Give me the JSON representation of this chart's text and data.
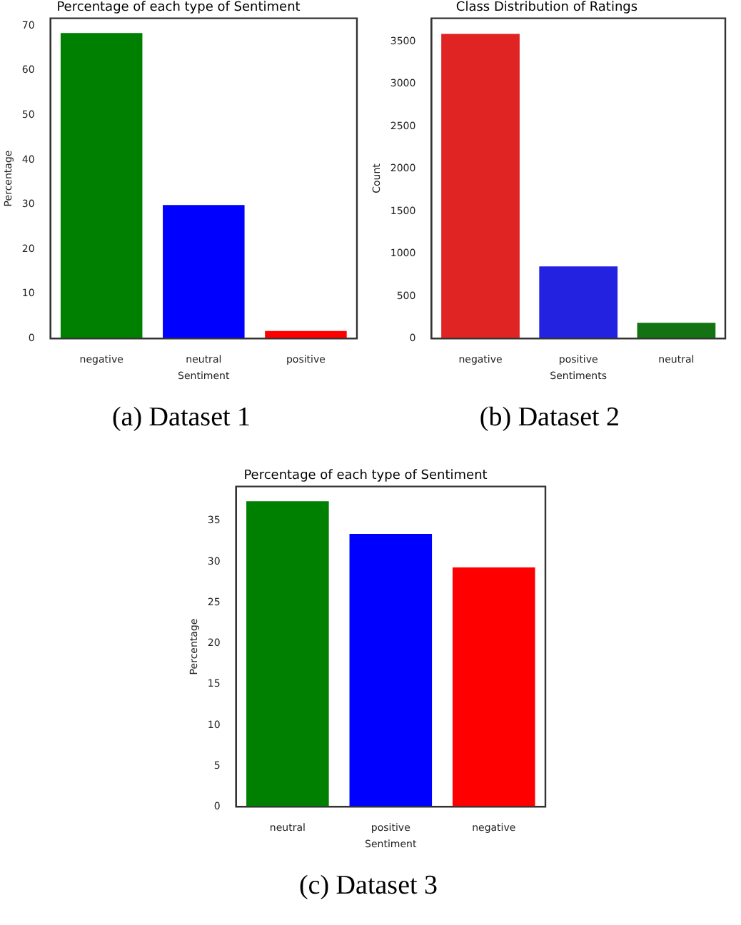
{
  "chart_data": [
    {
      "type": "bar",
      "title": "Percentage of each type of Sentiment",
      "xlabel": "Sentiment",
      "ylabel": "Percentage",
      "categories": [
        "negative",
        "neutral",
        "positive"
      ],
      "values": [
        68.4,
        29.9,
        1.7
      ],
      "colors": [
        "#008000",
        "#0000ff",
        "#ff0000"
      ],
      "ylim": [
        0,
        71.7
      ],
      "yticks": [
        0,
        10,
        20,
        30,
        40,
        50,
        60,
        70
      ],
      "grid": false,
      "legend": false,
      "annotations": [
        "(a) Dataset 1"
      ]
    },
    {
      "type": "bar",
      "title": "Class Distribution of Ratings",
      "xlabel": "Sentiments",
      "ylabel": "Count",
      "categories": [
        "negative",
        "positive",
        "neutral"
      ],
      "values": [
        3590,
        850,
        187
      ],
      "colors": [
        "#e02424",
        "#2222e0",
        "#137313"
      ],
      "ylim": [
        0,
        3775
      ],
      "yticks": [
        0,
        500,
        1000,
        1500,
        2000,
        2500,
        3000,
        3500
      ],
      "grid": false,
      "legend": false,
      "annotations": [
        "(b) Dataset 2"
      ]
    },
    {
      "type": "bar",
      "title": "Percentage of each type of Sentiment",
      "xlabel": "Sentiment",
      "ylabel": "Percentage",
      "categories": [
        "neutral",
        "positive",
        "negative"
      ],
      "values": [
        37.4,
        33.4,
        29.3
      ],
      "colors": [
        "#008000",
        "#0000ff",
        "#ff0000"
      ],
      "ylim": [
        0,
        39.2
      ],
      "yticks": [
        0,
        5,
        10,
        15,
        20,
        25,
        30,
        35
      ],
      "grid": false,
      "legend": false,
      "annotations": [
        "(c) Dataset 3"
      ]
    }
  ]
}
